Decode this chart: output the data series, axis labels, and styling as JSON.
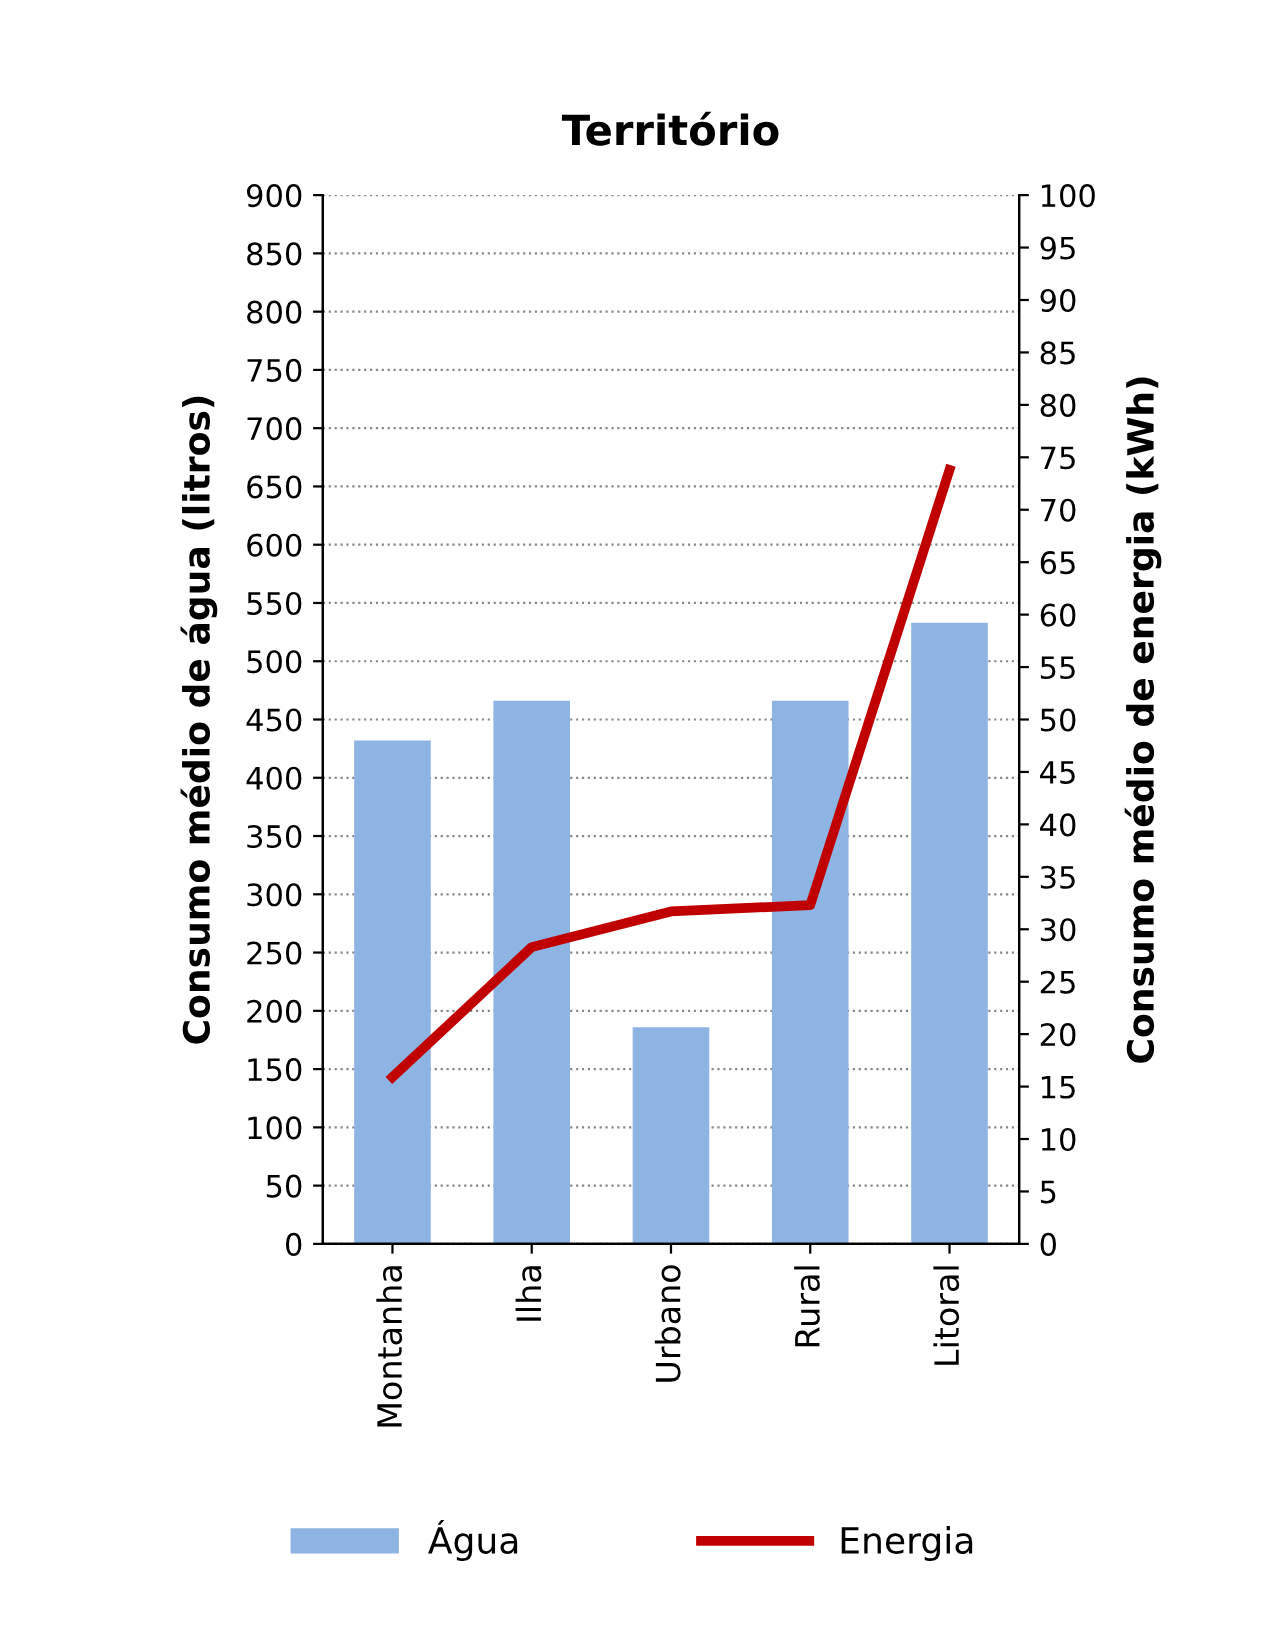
{
  "chart_data": {
    "type": "bar",
    "title": "Território",
    "ylabel": "Consumo médio de água (litros)",
    "y2label": "Consumo médio de energia (kWh)",
    "categories": [
      "Montanha",
      "Ilha",
      "Urbano",
      "Rural",
      "Litoral"
    ],
    "series": [
      {
        "name": "Água",
        "color": "#8eb4e3",
        "values": [
          432,
          466,
          186,
          466,
          533
        ]
      },
      {
        "name": "Energia",
        "type": "line",
        "axis": "y2",
        "color": "#c00000",
        "values": [
          15.9,
          28.3,
          31.7,
          32.3,
          73.8
        ]
      }
    ],
    "ylim": [
      0,
      900
    ],
    "yticks": [
      0,
      50,
      100,
      150,
      200,
      250,
      300,
      350,
      400,
      450,
      500,
      550,
      600,
      650,
      700,
      750,
      800,
      850,
      900
    ],
    "y2lim": [
      0,
      100
    ],
    "y2ticks": [
      0,
      5,
      10,
      15,
      20,
      25,
      30,
      35,
      40,
      45,
      50,
      55,
      60,
      65,
      70,
      75,
      80,
      85,
      90,
      95,
      100
    ],
    "grid": "y",
    "legend": "bottom"
  }
}
